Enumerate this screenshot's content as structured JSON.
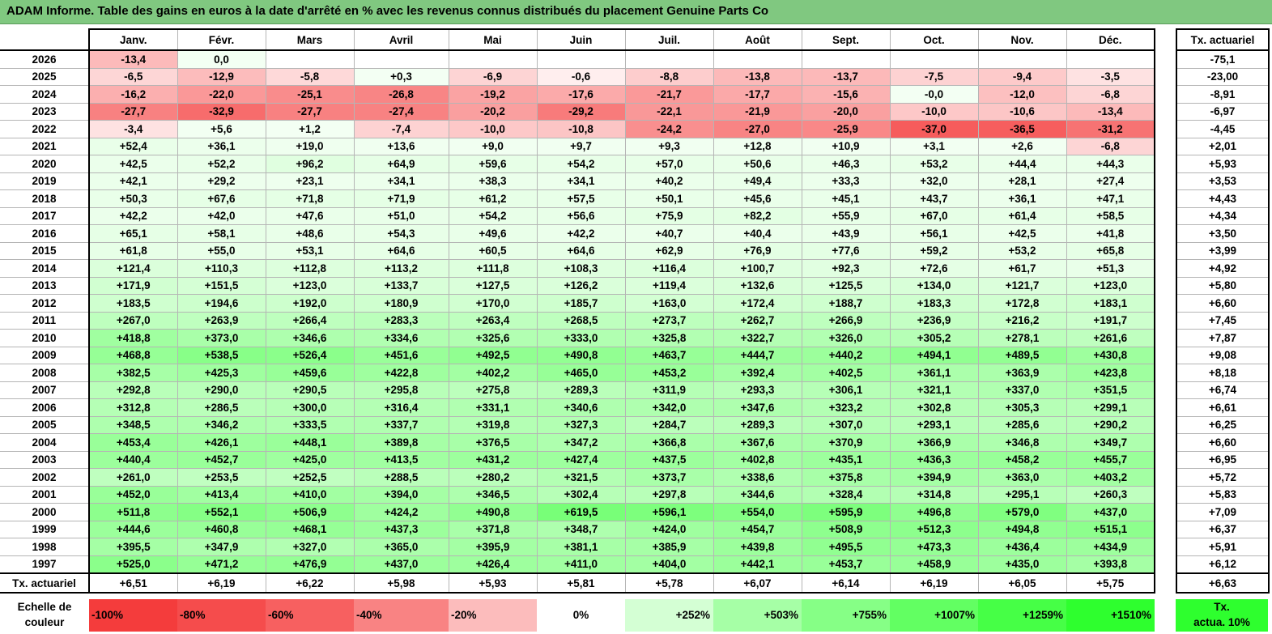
{
  "title": "ADAM Informe. Table des gains en euros à la date d'arrêté en % avec les revenus connus distribués du placement Genuine Parts Co",
  "chart_data": {
    "type": "table",
    "title": "ADAM Informe. Table des gains en euros à la date d'arrêté en % avec les revenus connus distribués du placement Genuine Parts Co",
    "months": [
      "Janv.",
      "Févr.",
      "Mars",
      "Avril",
      "Mai",
      "Juin",
      "Juil.",
      "Août",
      "Sept.",
      "Oct.",
      "Nov.",
      "Déc."
    ],
    "annual_header": "Tx. actuariel",
    "rows": [
      {
        "year": "2026",
        "values": [
          "-13,4",
          "0,0",
          "",
          "",
          "",
          "",
          "",
          "",
          "",
          "",
          "",
          ""
        ],
        "annual": "-75,1"
      },
      {
        "year": "2025",
        "values": [
          "-6,5",
          "-12,9",
          "-5,8",
          "+0,3",
          "-6,9",
          "-0,6",
          "-8,8",
          "-13,8",
          "-13,7",
          "-7,5",
          "-9,4",
          "-3,5"
        ],
        "annual": "-23,00"
      },
      {
        "year": "2024",
        "values": [
          "-16,2",
          "-22,0",
          "-25,1",
          "-26,8",
          "-19,2",
          "-17,6",
          "-21,7",
          "-17,7",
          "-15,6",
          "-0,0",
          "-12,0",
          "-6,8"
        ],
        "annual": "-8,91"
      },
      {
        "year": "2023",
        "values": [
          "-27,7",
          "-32,9",
          "-27,7",
          "-27,4",
          "-20,2",
          "-29,2",
          "-22,1",
          "-21,9",
          "-20,0",
          "-10,0",
          "-10,6",
          "-13,4"
        ],
        "annual": "-6,97"
      },
      {
        "year": "2022",
        "values": [
          "-3,4",
          "+5,6",
          "+1,2",
          "-7,4",
          "-10,0",
          "-10,8",
          "-24,2",
          "-27,0",
          "-25,9",
          "-37,0",
          "-36,5",
          "-31,2"
        ],
        "annual": "-4,45"
      },
      {
        "year": "2021",
        "values": [
          "+52,4",
          "+36,1",
          "+19,0",
          "+13,6",
          "+9,0",
          "+9,7",
          "+9,3",
          "+12,8",
          "+10,9",
          "+3,1",
          "+2,6",
          "-6,8"
        ],
        "annual": "+2,01"
      },
      {
        "year": "2020",
        "values": [
          "+42,5",
          "+52,2",
          "+96,2",
          "+64,9",
          "+59,6",
          "+54,2",
          "+57,0",
          "+50,6",
          "+46,3",
          "+53,2",
          "+44,4",
          "+44,3"
        ],
        "annual": "+5,93"
      },
      {
        "year": "2019",
        "values": [
          "+42,1",
          "+29,2",
          "+23,1",
          "+34,1",
          "+38,3",
          "+34,1",
          "+40,2",
          "+49,4",
          "+33,3",
          "+32,0",
          "+28,1",
          "+27,4"
        ],
        "annual": "+3,53"
      },
      {
        "year": "2018",
        "values": [
          "+50,3",
          "+67,6",
          "+71,8",
          "+71,9",
          "+61,2",
          "+57,5",
          "+50,1",
          "+45,6",
          "+45,1",
          "+43,7",
          "+36,1",
          "+47,1"
        ],
        "annual": "+4,43"
      },
      {
        "year": "2017",
        "values": [
          "+42,2",
          "+42,0",
          "+47,6",
          "+51,0",
          "+54,2",
          "+56,6",
          "+75,9",
          "+82,2",
          "+55,9",
          "+67,0",
          "+61,4",
          "+58,5"
        ],
        "annual": "+4,34"
      },
      {
        "year": "2016",
        "values": [
          "+65,1",
          "+58,1",
          "+48,6",
          "+54,3",
          "+49,6",
          "+42,2",
          "+40,7",
          "+40,4",
          "+43,9",
          "+56,1",
          "+42,5",
          "+41,8"
        ],
        "annual": "+3,50"
      },
      {
        "year": "2015",
        "values": [
          "+61,8",
          "+55,0",
          "+53,1",
          "+64,6",
          "+60,5",
          "+64,6",
          "+62,9",
          "+76,9",
          "+77,6",
          "+59,2",
          "+53,2",
          "+65,8"
        ],
        "annual": "+3,99"
      },
      {
        "year": "2014",
        "values": [
          "+121,4",
          "+110,3",
          "+112,8",
          "+113,2",
          "+111,8",
          "+108,3",
          "+116,4",
          "+100,7",
          "+92,3",
          "+72,6",
          "+61,7",
          "+51,3"
        ],
        "annual": "+4,92"
      },
      {
        "year": "2013",
        "values": [
          "+171,9",
          "+151,5",
          "+123,0",
          "+133,7",
          "+127,5",
          "+126,2",
          "+119,4",
          "+132,6",
          "+125,5",
          "+134,0",
          "+121,7",
          "+123,0"
        ],
        "annual": "+5,80"
      },
      {
        "year": "2012",
        "values": [
          "+183,5",
          "+194,6",
          "+192,0",
          "+180,9",
          "+170,0",
          "+185,7",
          "+163,0",
          "+172,4",
          "+188,7",
          "+183,3",
          "+172,8",
          "+183,1"
        ],
        "annual": "+6,60"
      },
      {
        "year": "2011",
        "values": [
          "+267,0",
          "+263,9",
          "+266,4",
          "+283,3",
          "+263,4",
          "+268,5",
          "+273,7",
          "+262,7",
          "+266,9",
          "+236,9",
          "+216,2",
          "+191,7"
        ],
        "annual": "+7,45"
      },
      {
        "year": "2010",
        "values": [
          "+418,8",
          "+373,0",
          "+346,6",
          "+334,6",
          "+325,6",
          "+333,0",
          "+325,8",
          "+322,7",
          "+326,0",
          "+305,2",
          "+278,1",
          "+261,6"
        ],
        "annual": "+7,87"
      },
      {
        "year": "2009",
        "values": [
          "+468,8",
          "+538,5",
          "+526,4",
          "+451,6",
          "+492,5",
          "+490,8",
          "+463,7",
          "+444,7",
          "+440,2",
          "+494,1",
          "+489,5",
          "+430,8"
        ],
        "annual": "+9,08"
      },
      {
        "year": "2008",
        "values": [
          "+382,5",
          "+425,3",
          "+459,6",
          "+422,8",
          "+402,2",
          "+465,0",
          "+453,2",
          "+392,4",
          "+402,5",
          "+361,1",
          "+363,9",
          "+423,8"
        ],
        "annual": "+8,18"
      },
      {
        "year": "2007",
        "values": [
          "+292,8",
          "+290,0",
          "+290,5",
          "+295,8",
          "+275,8",
          "+289,3",
          "+311,9",
          "+293,3",
          "+306,1",
          "+321,1",
          "+337,0",
          "+351,5"
        ],
        "annual": "+6,74"
      },
      {
        "year": "2006",
        "values": [
          "+312,8",
          "+286,5",
          "+300,0",
          "+316,4",
          "+331,1",
          "+340,6",
          "+342,0",
          "+347,6",
          "+323,2",
          "+302,8",
          "+305,3",
          "+299,1"
        ],
        "annual": "+6,61"
      },
      {
        "year": "2005",
        "values": [
          "+348,5",
          "+346,2",
          "+333,5",
          "+337,7",
          "+319,8",
          "+327,3",
          "+284,7",
          "+289,3",
          "+307,0",
          "+293,1",
          "+285,6",
          "+290,2"
        ],
        "annual": "+6,25"
      },
      {
        "year": "2004",
        "values": [
          "+453,4",
          "+426,1",
          "+448,1",
          "+389,8",
          "+376,5",
          "+347,2",
          "+366,8",
          "+367,6",
          "+370,9",
          "+366,9",
          "+346,8",
          "+349,7"
        ],
        "annual": "+6,60"
      },
      {
        "year": "2003",
        "values": [
          "+440,4",
          "+452,7",
          "+425,0",
          "+413,5",
          "+431,2",
          "+427,4",
          "+437,5",
          "+402,8",
          "+435,1",
          "+436,3",
          "+458,2",
          "+455,7"
        ],
        "annual": "+6,95"
      },
      {
        "year": "2002",
        "values": [
          "+261,0",
          "+253,5",
          "+252,5",
          "+288,5",
          "+280,2",
          "+321,5",
          "+373,7",
          "+338,6",
          "+375,8",
          "+394,9",
          "+363,0",
          "+403,2"
        ],
        "annual": "+5,72"
      },
      {
        "year": "2001",
        "values": [
          "+452,0",
          "+413,4",
          "+410,0",
          "+394,0",
          "+346,5",
          "+302,4",
          "+297,8",
          "+344,6",
          "+328,4",
          "+314,8",
          "+295,1",
          "+260,3"
        ],
        "annual": "+5,83"
      },
      {
        "year": "2000",
        "values": [
          "+511,8",
          "+552,1",
          "+506,9",
          "+424,2",
          "+490,8",
          "+619,5",
          "+596,1",
          "+554,0",
          "+595,9",
          "+496,8",
          "+579,0",
          "+437,0"
        ],
        "annual": "+7,09"
      },
      {
        "year": "1999",
        "values": [
          "+444,6",
          "+460,8",
          "+468,1",
          "+437,3",
          "+371,8",
          "+348,7",
          "+424,0",
          "+454,7",
          "+508,9",
          "+512,3",
          "+494,8",
          "+515,1"
        ],
        "annual": "+6,37"
      },
      {
        "year": "1998",
        "values": [
          "+395,5",
          "+347,9",
          "+327,0",
          "+365,0",
          "+395,9",
          "+381,1",
          "+385,9",
          "+439,8",
          "+495,5",
          "+473,3",
          "+436,4",
          "+434,9"
        ],
        "annual": "+5,91"
      },
      {
        "year": "1997",
        "values": [
          "+525,0",
          "+471,2",
          "+476,9",
          "+437,0",
          "+426,4",
          "+411,0",
          "+404,0",
          "+442,1",
          "+453,7",
          "+458,9",
          "+435,0",
          "+393,8"
        ],
        "annual": "+6,12"
      }
    ],
    "footer": {
      "label": "Tx. actuariel",
      "values": [
        "+6,51",
        "+6,19",
        "+6,22",
        "+5,98",
        "+5,93",
        "+5,81",
        "+5,78",
        "+6,07",
        "+6,14",
        "+6,19",
        "+6,05",
        "+5,75"
      ],
      "annual": "+6,63"
    },
    "color_scale": {
      "label_line1": "Echelle de",
      "label_line2": "couleur",
      "steps": [
        {
          "label": "-100%",
          "color": "#f43c3c",
          "kind": "neg"
        },
        {
          "label": "-80%",
          "color": "#f54c4c",
          "kind": "neg"
        },
        {
          "label": "-60%",
          "color": "#f76060",
          "kind": "neg"
        },
        {
          "label": "-40%",
          "color": "#f98383",
          "kind": "neg"
        },
        {
          "label": "-20%",
          "color": "#fcbcbc",
          "kind": "neg"
        },
        {
          "label": "0%",
          "color": "#ffffff",
          "kind": "zero"
        },
        {
          "label": "+252%",
          "color": "#d4ffd4",
          "kind": "pos"
        },
        {
          "label": "+503%",
          "color": "#a6ffa6",
          "kind": "pos"
        },
        {
          "label": "+755%",
          "color": "#86ff86",
          "kind": "pos"
        },
        {
          "label": "+1007%",
          "color": "#62ff62",
          "kind": "pos"
        },
        {
          "label": "+1259%",
          "color": "#46ff46",
          "kind": "pos"
        },
        {
          "label": "+1510%",
          "color": "#2eff2e",
          "kind": "pos"
        }
      ],
      "actua_line1": "Tx.",
      "actua_line2": "actua. 10%",
      "actua_color": "#2eff2e"
    }
  }
}
